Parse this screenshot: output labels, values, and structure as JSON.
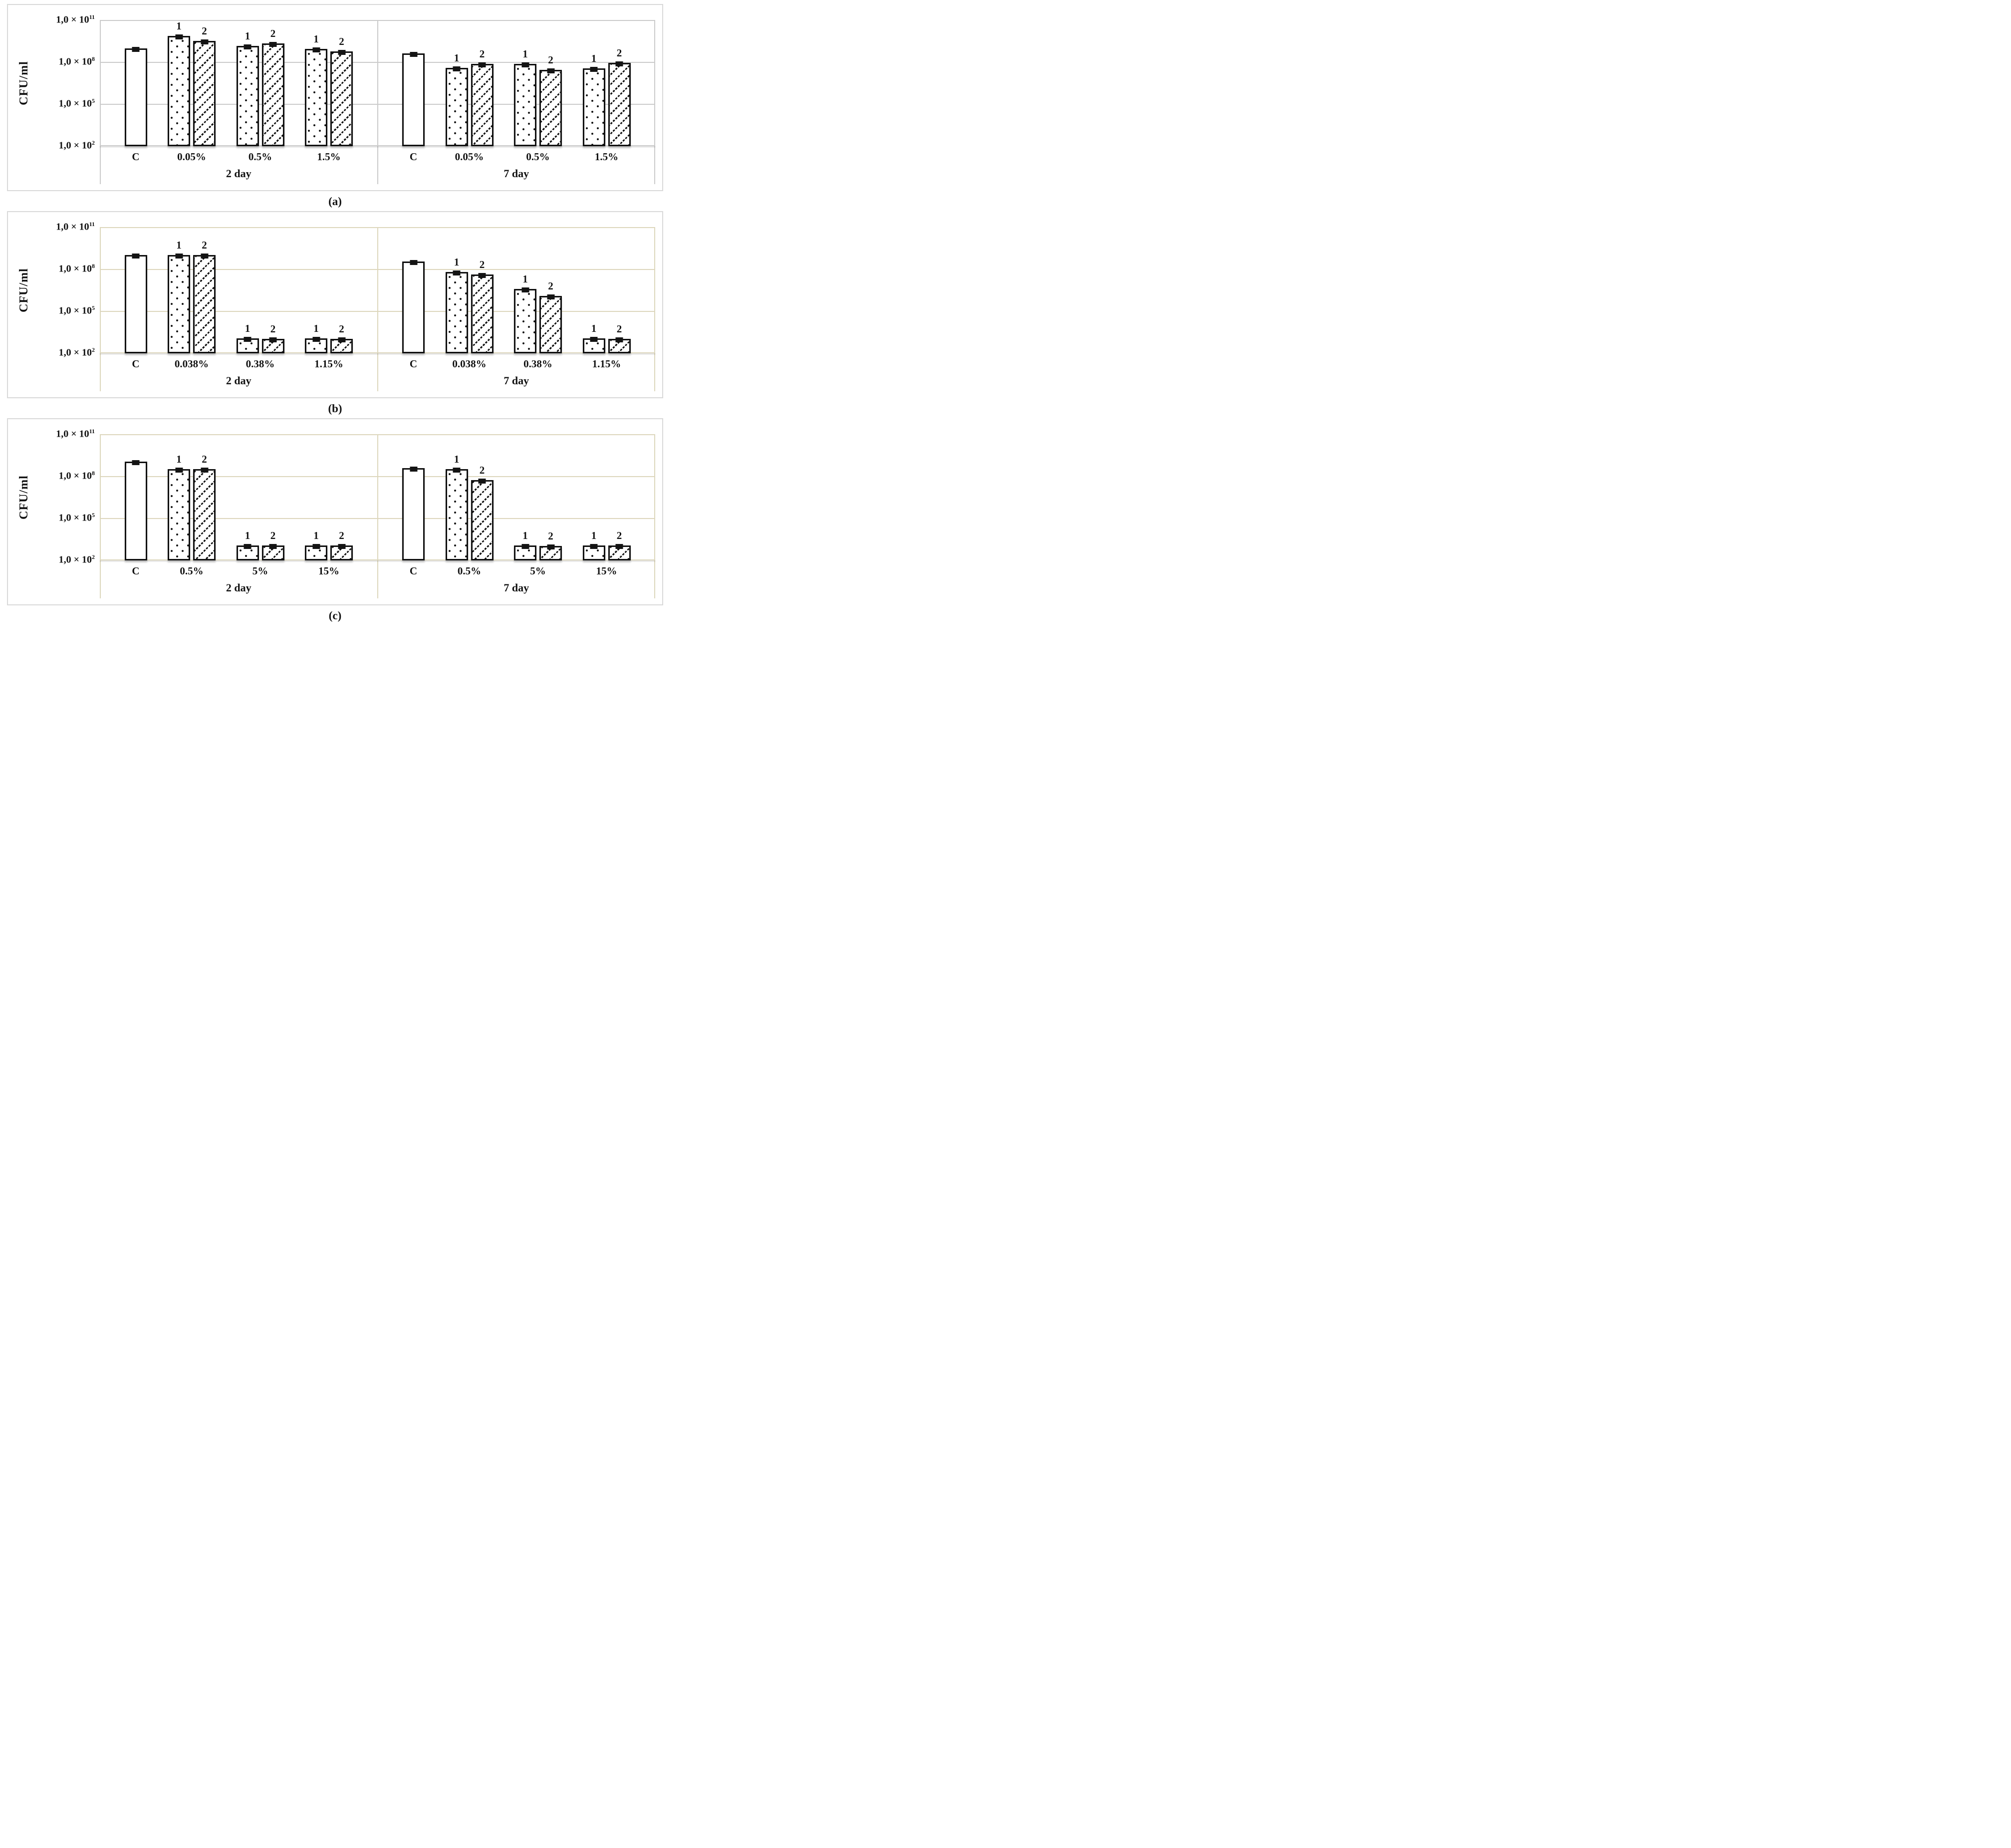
{
  "figure_caption_labels": [
    "(a)",
    "(b)",
    "(c)"
  ],
  "chart_data": [
    {
      "type": "bar",
      "panel": "(a)",
      "ylabel": "CFU/ml",
      "log_scale": true,
      "ylim": [
        100,
        100000000000
      ],
      "yticks": [
        {
          "base": "1,0 × 10",
          "exp": "11"
        },
        {
          "base": "1,0 × 10",
          "exp": "8"
        },
        {
          "base": "1,0 × 10",
          "exp": "5"
        },
        {
          "base": "1,0 × 10",
          "exp": "2"
        }
      ],
      "grid_color": "#cbcbcb",
      "groups": [
        {
          "label": "2 day",
          "categories": [
            {
              "label": "C",
              "bars": [
                {
                  "series": "C",
                  "pattern": "plain",
                  "cfu": 1000000000.0
                }
              ]
            },
            {
              "label": "0.05%",
              "bars": [
                {
                  "series": "1",
                  "pattern": "dots",
                  "cfu": 8000000000.0
                },
                {
                  "series": "2",
                  "pattern": "hatch",
                  "cfu": 3500000000.0
                }
              ]
            },
            {
              "label": "0.5%",
              "bars": [
                {
                  "series": "1",
                  "pattern": "dots",
                  "cfu": 1500000000.0
                },
                {
                  "series": "2",
                  "pattern": "hatch",
                  "cfu": 2300000000.0
                }
              ]
            },
            {
              "label": "1.5%",
              "bars": [
                {
                  "series": "1",
                  "pattern": "dots",
                  "cfu": 900000000.0
                },
                {
                  "series": "2",
                  "pattern": "hatch",
                  "cfu": 600000000.0
                }
              ]
            }
          ]
        },
        {
          "label": "7 day",
          "categories": [
            {
              "label": "C",
              "bars": [
                {
                  "series": "C",
                  "pattern": "plain",
                  "cfu": 450000000.0
                }
              ]
            },
            {
              "label": "0.05%",
              "bars": [
                {
                  "series": "1",
                  "pattern": "dots",
                  "cfu": 40000000.0
                },
                {
                  "series": "2",
                  "pattern": "hatch",
                  "cfu": 80000000.0
                }
              ]
            },
            {
              "label": "0.5%",
              "bars": [
                {
                  "series": "1",
                  "pattern": "dots",
                  "cfu": 75000000.0
                },
                {
                  "series": "2",
                  "pattern": "hatch",
                  "cfu": 28000000.0
                }
              ]
            },
            {
              "label": "1.5%",
              "bars": [
                {
                  "series": "1",
                  "pattern": "dots",
                  "cfu": 38000000.0
                },
                {
                  "series": "2",
                  "pattern": "hatch",
                  "cfu": 90000000.0
                }
              ]
            }
          ]
        }
      ]
    },
    {
      "type": "bar",
      "panel": "(b)",
      "ylabel": "CFU/ml",
      "log_scale": true,
      "ylim": [
        100,
        100000000000
      ],
      "yticks": [
        {
          "base": "1,0 × 10",
          "exp": "11"
        },
        {
          "base": "1,0 × 10",
          "exp": "8"
        },
        {
          "base": "1,0 × 10",
          "exp": "5"
        },
        {
          "base": "1,0 × 10",
          "exp": "2"
        }
      ],
      "grid_color": "#ddd7bd",
      "groups": [
        {
          "label": "2 day",
          "categories": [
            {
              "label": "C",
              "bars": [
                {
                  "series": "C",
                  "pattern": "plain",
                  "cfu": 1100000000.0
                }
              ]
            },
            {
              "label": "0.038%",
              "bars": [
                {
                  "series": "1",
                  "pattern": "dots",
                  "cfu": 1100000000.0
                },
                {
                  "series": "2",
                  "pattern": "hatch",
                  "cfu": 1100000000.0
                }
              ]
            },
            {
              "label": "0.38%",
              "bars": [
                {
                  "series": "1",
                  "pattern": "dots",
                  "cfu": 1200.0
                },
                {
                  "series": "2",
                  "pattern": "hatch",
                  "cfu": 1100.0
                }
              ]
            },
            {
              "label": "1.15%",
              "bars": [
                {
                  "series": "1",
                  "pattern": "dots",
                  "cfu": 1200.0
                },
                {
                  "series": "2",
                  "pattern": "hatch",
                  "cfu": 1100.0
                }
              ]
            }
          ]
        },
        {
          "label": "7 day",
          "categories": [
            {
              "label": "C",
              "bars": [
                {
                  "series": "C",
                  "pattern": "plain",
                  "cfu": 380000000.0
                }
              ]
            },
            {
              "label": "0.038%",
              "bars": [
                {
                  "series": "1",
                  "pattern": "dots",
                  "cfu": 65000000.0
                },
                {
                  "series": "2",
                  "pattern": "hatch",
                  "cfu": 45000000.0
                }
              ]
            },
            {
              "label": "0.38%",
              "bars": [
                {
                  "series": "1",
                  "pattern": "dots",
                  "cfu": 4000000.0
                },
                {
                  "series": "2",
                  "pattern": "hatch",
                  "cfu": 1300000.0
                }
              ]
            },
            {
              "label": "1.15%",
              "bars": [
                {
                  "series": "1",
                  "pattern": "dots",
                  "cfu": 1200.0
                },
                {
                  "series": "2",
                  "pattern": "hatch",
                  "cfu": 1100.0
                }
              ]
            }
          ]
        }
      ]
    },
    {
      "type": "bar",
      "panel": "(c)",
      "ylabel": "CFU/ml",
      "log_scale": true,
      "ylim": [
        100,
        100000000000
      ],
      "yticks": [
        {
          "base": "1,0 × 10",
          "exp": "11"
        },
        {
          "base": "1,0 × 10",
          "exp": "8"
        },
        {
          "base": "1,0 × 10",
          "exp": "5"
        },
        {
          "base": "1,0 × 10",
          "exp": "2"
        }
      ],
      "grid_color": "#ddd7bd",
      "groups": [
        {
          "label": "2 day",
          "categories": [
            {
              "label": "C",
              "bars": [
                {
                  "series": "C",
                  "pattern": "plain",
                  "cfu": 1200000000.0
                }
              ]
            },
            {
              "label": "0.5%",
              "bars": [
                {
                  "series": "1",
                  "pattern": "dots",
                  "cfu": 350000000.0
                },
                {
                  "series": "2",
                  "pattern": "hatch",
                  "cfu": 350000000.0
                }
              ]
            },
            {
              "label": "5%",
              "bars": [
                {
                  "series": "1",
                  "pattern": "dots",
                  "cfu": 1200.0
                },
                {
                  "series": "2",
                  "pattern": "hatch",
                  "cfu": 1200.0
                }
              ]
            },
            {
              "label": "15%",
              "bars": [
                {
                  "series": "1",
                  "pattern": "dots",
                  "cfu": 1200.0
                },
                {
                  "series": "2",
                  "pattern": "hatch",
                  "cfu": 1200.0
                }
              ]
            }
          ]
        },
        {
          "label": "7 day",
          "categories": [
            {
              "label": "C",
              "bars": [
                {
                  "series": "C",
                  "pattern": "plain",
                  "cfu": 420000000.0
                }
              ]
            },
            {
              "label": "0.5%",
              "bars": [
                {
                  "series": "1",
                  "pattern": "dots",
                  "cfu": 330000000.0
                },
                {
                  "series": "2",
                  "pattern": "hatch",
                  "cfu": 55000000.0
                }
              ]
            },
            {
              "label": "5%",
              "bars": [
                {
                  "series": "1",
                  "pattern": "dots",
                  "cfu": 1200.0
                },
                {
                  "series": "2",
                  "pattern": "hatch",
                  "cfu": 1100.0
                }
              ]
            },
            {
              "label": "15%",
              "bars": [
                {
                  "series": "1",
                  "pattern": "dots",
                  "cfu": 1200.0
                },
                {
                  "series": "2",
                  "pattern": "hatch",
                  "cfu": 1200.0
                }
              ]
            }
          ]
        }
      ]
    }
  ]
}
